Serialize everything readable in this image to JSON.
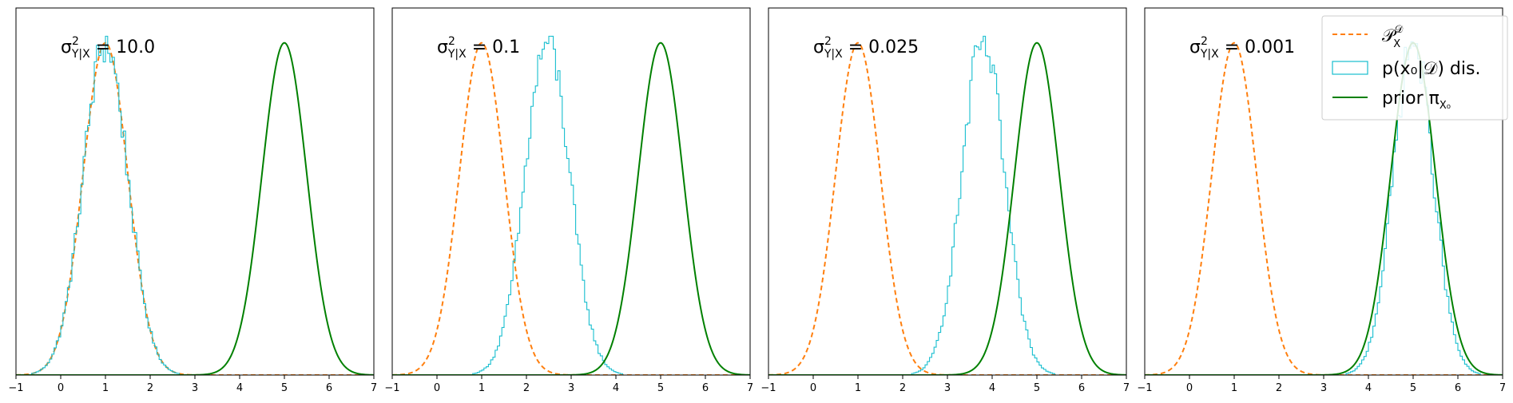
{
  "figure": {
    "colors": {
      "data_dist": "#ff7f0e",
      "posterior_hist": "#17becf",
      "prior": "#008000",
      "axes": "#000000"
    }
  },
  "chart_data": [
    {
      "type": "line",
      "title": "σ²Y|X = 10.0",
      "title_main": "σ",
      "title_sup": "2",
      "title_sub": "Y|X",
      "title_value": " = 10.0",
      "xlim": [
        -1,
        7
      ],
      "xticks": [
        -1,
        0,
        1,
        2,
        3,
        4,
        5,
        6,
        7
      ],
      "ylabel": "",
      "xlabel": "",
      "yticks_visible": false,
      "series": [
        {
          "kind": "pdf",
          "style": "dashed",
          "color_key": "data_dist",
          "mean": 1.0,
          "sd": 0.5
        },
        {
          "kind": "histogram",
          "color_key": "posterior_hist",
          "mean": 1.0,
          "sd": 0.5
        },
        {
          "kind": "pdf",
          "style": "solid",
          "color_key": "prior",
          "mean": 5.0,
          "sd": 0.5
        }
      ]
    },
    {
      "type": "line",
      "title": "σ²Y|X = 0.1",
      "title_main": "σ",
      "title_sup": "2",
      "title_sub": "Y|X",
      "title_value": " = 0.1",
      "xlim": [
        -1,
        7
      ],
      "xticks": [
        -1,
        0,
        1,
        2,
        3,
        4,
        5,
        6,
        7
      ],
      "ylabel": "",
      "xlabel": "",
      "yticks_visible": false,
      "series": [
        {
          "kind": "pdf",
          "style": "dashed",
          "color_key": "data_dist",
          "mean": 1.0,
          "sd": 0.5
        },
        {
          "kind": "histogram",
          "color_key": "posterior_hist",
          "mean": 2.47,
          "sd": 0.5
        },
        {
          "kind": "pdf",
          "style": "solid",
          "color_key": "prior",
          "mean": 5.0,
          "sd": 0.5
        }
      ]
    },
    {
      "type": "line",
      "title": "σ²Y|X = 0.025",
      "title_main": "σ",
      "title_sup": "2",
      "title_sub": "Y|X",
      "title_value": " = 0.025",
      "xlim": [
        -1,
        7
      ],
      "xticks": [
        -1,
        0,
        1,
        2,
        3,
        4,
        5,
        6,
        7
      ],
      "ylabel": "",
      "xlabel": "",
      "yticks_visible": false,
      "series": [
        {
          "kind": "pdf",
          "style": "dashed",
          "color_key": "data_dist",
          "mean": 1.0,
          "sd": 0.5
        },
        {
          "kind": "histogram",
          "color_key": "posterior_hist",
          "mean": 3.8,
          "sd": 0.48
        },
        {
          "kind": "pdf",
          "style": "solid",
          "color_key": "prior",
          "mean": 5.0,
          "sd": 0.5
        }
      ]
    },
    {
      "type": "line",
      "title": "σ²Y|X = 0.001",
      "title_main": "σ",
      "title_sup": "2",
      "title_sub": "Y|X",
      "title_value": " = 0.001",
      "xlim": [
        -1,
        7
      ],
      "xticks": [
        -1,
        0,
        1,
        2,
        3,
        4,
        5,
        6,
        7
      ],
      "ylabel": "",
      "xlabel": "",
      "yticks_visible": false,
      "series": [
        {
          "kind": "pdf",
          "style": "dashed",
          "color_key": "data_dist",
          "mean": 1.0,
          "sd": 0.5
        },
        {
          "kind": "histogram",
          "color_key": "posterior_hist",
          "mean": 5.0,
          "sd": 0.45
        },
        {
          "kind": "pdf",
          "style": "solid",
          "color_key": "prior",
          "mean": 5.0,
          "sd": 0.5
        }
      ]
    }
  ],
  "legend": {
    "placement": "top-right of last panel",
    "entries": [
      {
        "label": "𝒫_X^𝒟",
        "label_main": "𝒫",
        "label_sup": "𝒟",
        "label_sub": "X",
        "marker": "dashed-line",
        "color_key": "data_dist"
      },
      {
        "label": "p(x₀|𝒟) dis.",
        "label_main": "p(x₀|𝒟) dis.",
        "marker": "hollow-box",
        "color_key": "posterior_hist"
      },
      {
        "label": "prior π_X₀",
        "label_main": "prior π",
        "label_sub": "X₀",
        "marker": "solid-line",
        "color_key": "prior"
      }
    ]
  }
}
